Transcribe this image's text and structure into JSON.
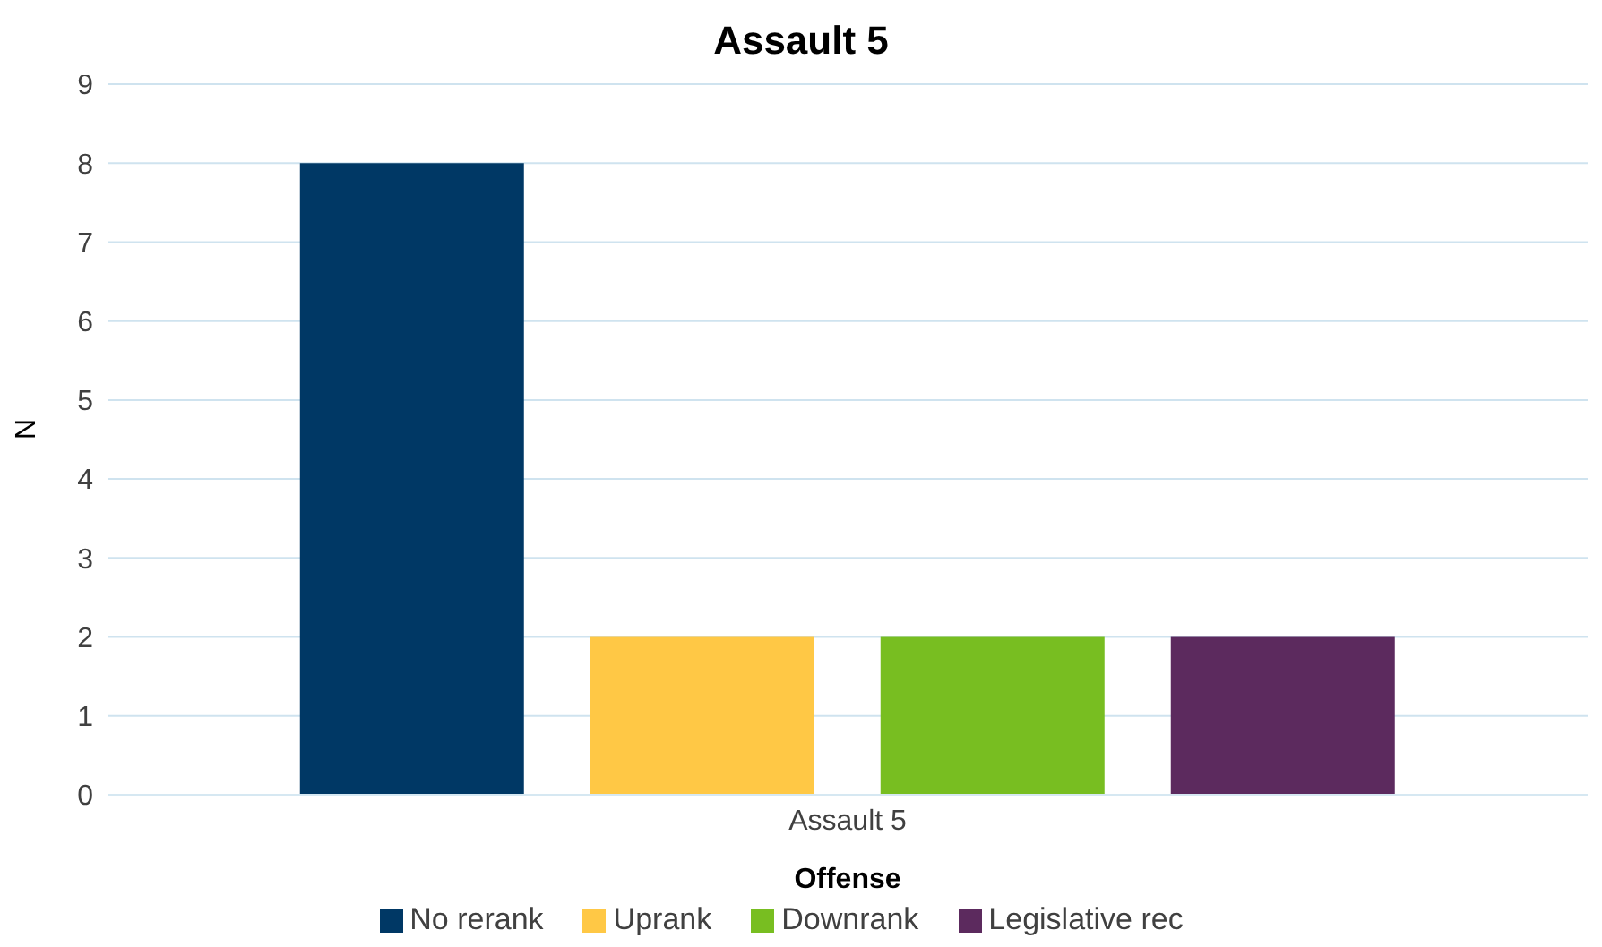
{
  "chart_data": {
    "type": "bar",
    "title": "Assault 5",
    "xlabel": "Offense",
    "ylabel": "N",
    "categories": [
      "Assault 5"
    ],
    "series": [
      {
        "name": "No rerank",
        "color": "#003865",
        "values": [
          8
        ]
      },
      {
        "name": "Uprank",
        "color": "#ffc845",
        "values": [
          2
        ]
      },
      {
        "name": "Downrank",
        "color": "#78be21",
        "values": [
          2
        ]
      },
      {
        "name": "Legislative rec",
        "color": "#5c2a5e",
        "values": [
          2
        ]
      }
    ],
    "ylim": [
      0,
      9
    ],
    "yticks": [
      0,
      1,
      2,
      3,
      4,
      5,
      6,
      7,
      8,
      9
    ],
    "grid": "y",
    "legend": "bottom"
  }
}
